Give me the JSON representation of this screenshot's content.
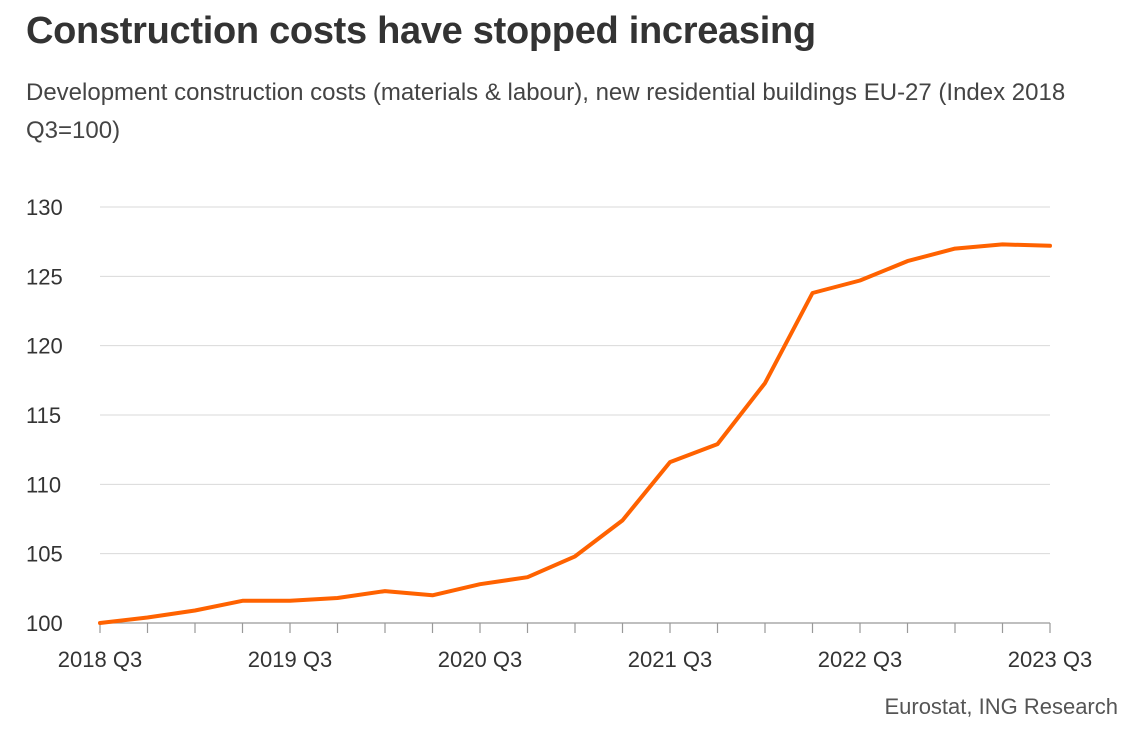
{
  "title": "Construction costs have stopped increasing",
  "subtitle": "Development construction costs (materials & labour), new residential buildings EU-27 (Index 2018 Q3=100)",
  "source": "Eurostat, ING Research",
  "chart_data": {
    "type": "line",
    "x": [
      "2018 Q3",
      "2018 Q4",
      "2019 Q1",
      "2019 Q2",
      "2019 Q3",
      "2019 Q4",
      "2020 Q1",
      "2020 Q2",
      "2020 Q3",
      "2020 Q4",
      "2021 Q1",
      "2021 Q2",
      "2021 Q3",
      "2021 Q4",
      "2022 Q1",
      "2022 Q2",
      "2022 Q3",
      "2022 Q4",
      "2023 Q1",
      "2023 Q2",
      "2023 Q3"
    ],
    "x_tick_labels": [
      "2018 Q3",
      "2019 Q3",
      "2020 Q3",
      "2021 Q3",
      "2022 Q3",
      "2023 Q3"
    ],
    "series": [
      {
        "values": [
          100.0,
          100.4,
          100.9,
          101.6,
          101.6,
          101.8,
          102.3,
          102.0,
          102.8,
          103.3,
          104.8,
          107.4,
          111.6,
          112.9,
          117.3,
          123.8,
          124.7,
          126.1,
          127.0,
          127.3,
          127.2
        ]
      }
    ],
    "ylim": [
      100,
      130
    ],
    "yticks": [
      100,
      105,
      110,
      115,
      120,
      125,
      130
    ],
    "grid": "horizontal",
    "colors": {
      "line": "#ff6200",
      "grid": "#d9d9d9",
      "axis": "#999999"
    }
  }
}
